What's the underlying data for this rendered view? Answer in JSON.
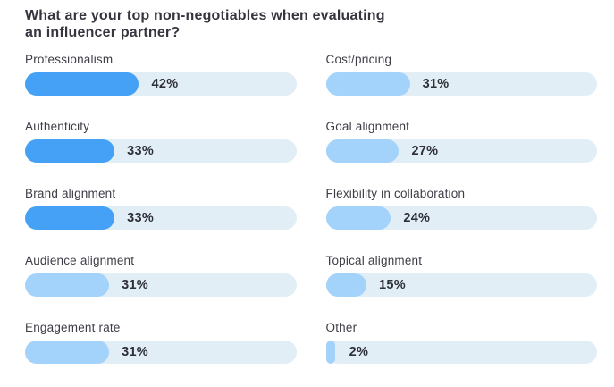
{
  "header": {
    "title_line1": "What are your top non-negotiables when evaluating",
    "title_line2": "an influencer partner?"
  },
  "colors": {
    "background": "#ffffff",
    "title_text": "#35353f",
    "label_text": "#3d3d47",
    "value_text": "#2f2f38",
    "bar_track": "#e2eef6",
    "bar_fill_dark": "#45a1f5",
    "bar_fill_light": "#a3d3fb"
  },
  "chart_data": {
    "type": "bar",
    "orientation": "horizontal",
    "title": "What are your top non-negotiables when evaluating an influencer partner?",
    "unit": "%",
    "value_range": [
      0,
      100
    ],
    "grid": false,
    "legend": false,
    "columns": [
      {
        "items": [
          {
            "label": "Professionalism",
            "value": 42,
            "value_label": "42%",
            "fill": "dark"
          },
          {
            "label": "Authenticity",
            "value": 33,
            "value_label": "33%",
            "fill": "dark"
          },
          {
            "label": "Brand alignment",
            "value": 33,
            "value_label": "33%",
            "fill": "dark"
          },
          {
            "label": "Audience alignment",
            "value": 31,
            "value_label": "31%",
            "fill": "light"
          },
          {
            "label": "Engagement rate",
            "value": 31,
            "value_label": "31%",
            "fill": "light"
          }
        ]
      },
      {
        "items": [
          {
            "label": "Cost/pricing",
            "value": 31,
            "value_label": "31%",
            "fill": "light"
          },
          {
            "label": "Goal alignment",
            "value": 27,
            "value_label": "27%",
            "fill": "light"
          },
          {
            "label": "Flexibility in collaboration",
            "value": 24,
            "value_label": "24%",
            "fill": "light"
          },
          {
            "label": "Topical alignment",
            "value": 15,
            "value_label": "15%",
            "fill": "light"
          },
          {
            "label": "Other",
            "value": 2,
            "value_label": "2%",
            "fill": "light"
          }
        ]
      }
    ]
  }
}
